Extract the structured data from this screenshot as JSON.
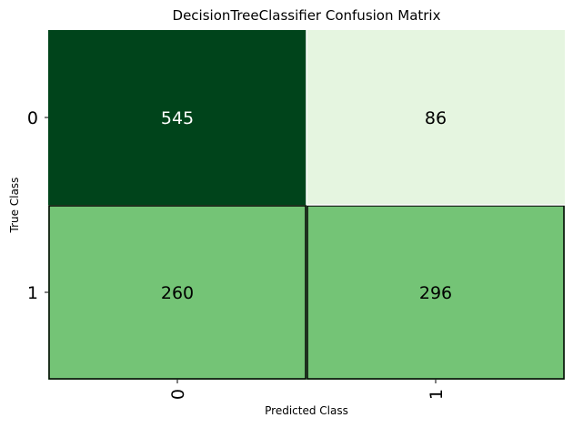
{
  "chart_data": {
    "type": "heatmap",
    "title": "DecisionTreeClassifier Confusion Matrix",
    "xlabel": "Predicted Class",
    "ylabel": "True Class",
    "x_categories": [
      "0",
      "1"
    ],
    "y_categories": [
      "0",
      "1"
    ],
    "values": [
      [
        545,
        86
      ],
      [
        260,
        296
      ]
    ],
    "cell_colors": [
      [
        "#00441b",
        "#e5f5e0"
      ],
      [
        "#74c476",
        "#74c476"
      ]
    ],
    "text_colors": [
      [
        "#ffffff",
        "#000000"
      ],
      [
        "#000000",
        "#000000"
      ]
    ],
    "colormap": "Greens",
    "grid": false
  }
}
